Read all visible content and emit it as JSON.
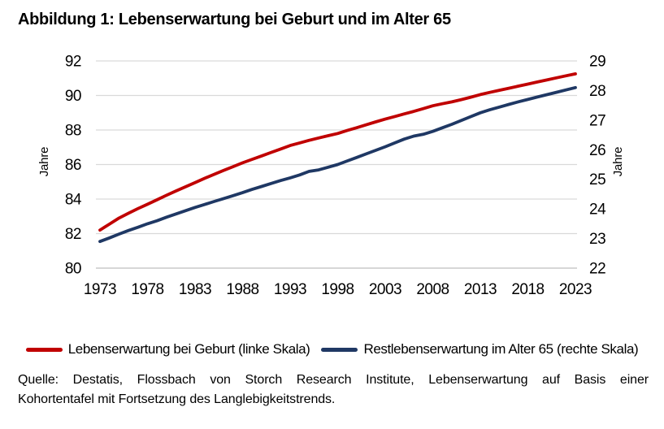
{
  "title": "Abbildung 1: Lebenserwartung bei Geburt und im Alter 65",
  "chart_data": {
    "type": "line",
    "title": "Abbildung 1: Lebenserwartung bei Geburt und im Alter 65",
    "grid": "horizontal",
    "legend_position": "bottom",
    "x": [
      1973,
      1974,
      1975,
      1976,
      1977,
      1978,
      1979,
      1980,
      1981,
      1982,
      1983,
      1984,
      1985,
      1986,
      1987,
      1988,
      1989,
      1990,
      1991,
      1992,
      1993,
      1994,
      1995,
      1996,
      1997,
      1998,
      1999,
      2000,
      2001,
      2002,
      2003,
      2004,
      2005,
      2006,
      2007,
      2008,
      2009,
      2010,
      2011,
      2012,
      2013,
      2014,
      2015,
      2016,
      2017,
      2018,
      2019,
      2020,
      2021,
      2022,
      2023
    ],
    "x_tick_labels": [
      "1973",
      "1978",
      "1983",
      "1988",
      "1993",
      "1998",
      "2003",
      "2008",
      "2013",
      "2018",
      "2023"
    ],
    "left_axis": {
      "label": "Jahre",
      "min": 80,
      "max": 92,
      "step": 2,
      "ticks": [
        80,
        82,
        84,
        86,
        88,
        90,
        92
      ]
    },
    "right_axis": {
      "label": "Jahre",
      "min": 22,
      "max": 29,
      "step": 1,
      "ticks": [
        22,
        23,
        24,
        25,
        26,
        27,
        28,
        29
      ]
    },
    "series": [
      {
        "name": "Lebenserwartung bei Geburt (linke Skala)",
        "axis": "left",
        "color": "#C00000",
        "values": [
          82.2,
          82.55,
          82.9,
          83.18,
          83.45,
          83.7,
          83.96,
          84.22,
          84.47,
          84.71,
          84.95,
          85.2,
          85.43,
          85.66,
          85.88,
          86.1,
          86.3,
          86.5,
          86.7,
          86.9,
          87.1,
          87.25,
          87.4,
          87.54,
          87.67,
          87.8,
          87.97,
          88.13,
          88.3,
          88.47,
          88.63,
          88.78,
          88.93,
          89.08,
          89.24,
          89.4,
          89.52,
          89.63,
          89.76,
          89.9,
          90.05,
          90.18,
          90.3,
          90.42,
          90.54,
          90.66,
          90.78,
          90.9,
          91.02,
          91.14,
          91.25
        ]
      },
      {
        "name": "Restlebenserwartung im Alter 65 (rechte Skala)",
        "axis": "right",
        "color": "#1F3864",
        "values": [
          22.9,
          23.02,
          23.15,
          23.27,
          23.38,
          23.5,
          23.6,
          23.72,
          23.83,
          23.94,
          24.05,
          24.15,
          24.25,
          24.35,
          24.45,
          24.55,
          24.66,
          24.76,
          24.86,
          24.96,
          25.05,
          25.15,
          25.27,
          25.32,
          25.41,
          25.5,
          25.62,
          25.74,
          25.86,
          25.98,
          26.1,
          26.23,
          26.36,
          26.46,
          26.52,
          26.62,
          26.74,
          26.86,
          26.99,
          27.12,
          27.25,
          27.35,
          27.44,
          27.53,
          27.62,
          27.7,
          27.78,
          27.86,
          27.94,
          28.02,
          28.1
        ]
      }
    ]
  },
  "colors": {
    "series_birth": "#C00000",
    "series_age65": "#1F3864",
    "gridline": "#D9D9D9",
    "axis_line": "#BFBFBF",
    "text": "#000000"
  },
  "source": {
    "line1": "Quelle: Destatis, Flossbach von Storch Research Institute, Lebenserwartung auf Basis einer",
    "line2": "Kohortentafel mit Fortsetzung des Langlebigkeitstrends."
  }
}
